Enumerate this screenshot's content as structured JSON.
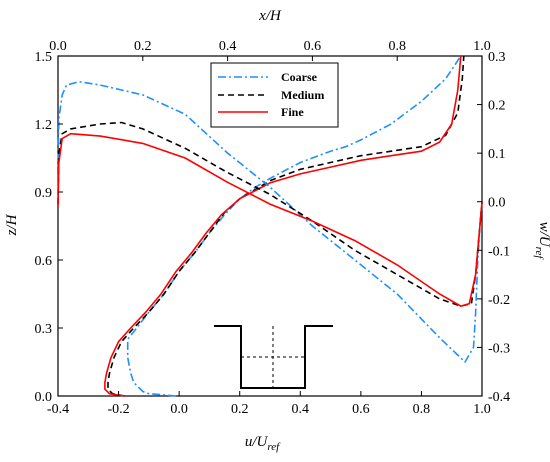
{
  "chart_data": {
    "type": "line",
    "axes": {
      "bottom": {
        "label_main": "u/U",
        "label_sub": "ref",
        "range": [
          -0.4,
          1.0
        ],
        "ticks": [
          "-0.4",
          "-0.2",
          "0.0",
          "0.2",
          "0.4",
          "0.6",
          "0.8",
          "1.0"
        ],
        "tick_values": [
          -0.4,
          -0.2,
          0.0,
          0.2,
          0.4,
          0.6,
          0.8,
          1.0
        ]
      },
      "top": {
        "label": "x/H",
        "range": [
          0.0,
          1.0
        ],
        "ticks": [
          "0.0",
          "0.2",
          "0.4",
          "0.6",
          "0.8",
          "1.0"
        ],
        "tick_values": [
          0.0,
          0.2,
          0.4,
          0.6,
          0.8,
          1.0
        ]
      },
      "left": {
        "label": "z/H",
        "range": [
          0.0,
          1.5
        ],
        "ticks": [
          "0.0",
          "0.3",
          "0.6",
          "0.9",
          "1.2",
          "1.5"
        ],
        "tick_values": [
          0.0,
          0.3,
          0.6,
          0.9,
          1.2,
          1.5
        ]
      },
      "right": {
        "label_main": "w/U",
        "label_sub": "ref",
        "range": [
          -0.4,
          0.3
        ],
        "ticks": [
          "-0.4",
          "-0.3",
          "-0.2",
          "-0.1",
          "0.0",
          "0.1",
          "0.2",
          "0.3"
        ],
        "tick_values": [
          -0.4,
          -0.3,
          -0.2,
          -0.1,
          0.0,
          0.1,
          0.2,
          0.3
        ]
      }
    },
    "legend": {
      "placement": "top-center",
      "entries": [
        {
          "name": "Coarse",
          "color": "#1f8fff",
          "dash": "dashdot"
        },
        {
          "name": "Medium",
          "color": "#000000",
          "dash": "dash"
        },
        {
          "name": "Fine",
          "color": "#ff0000",
          "dash": "solid"
        }
      ]
    },
    "series_u": [
      {
        "name": "Coarse",
        "color": "#1f8fff",
        "dash": "dashdot",
        "points": [
          [
            -0.01,
            0.0
          ],
          [
            -0.05,
            0.005
          ],
          [
            -0.1,
            0.01
          ],
          [
            -0.12,
            0.02
          ],
          [
            -0.15,
            0.06
          ],
          [
            -0.16,
            0.1
          ],
          [
            -0.17,
            0.17
          ],
          [
            -0.17,
            0.25
          ],
          [
            -0.14,
            0.3
          ],
          [
            -0.1,
            0.37
          ],
          [
            -0.05,
            0.45
          ],
          [
            0.0,
            0.55
          ],
          [
            0.05,
            0.63
          ],
          [
            0.1,
            0.72
          ],
          [
            0.15,
            0.8
          ],
          [
            0.2,
            0.87
          ],
          [
            0.25,
            0.92
          ],
          [
            0.3,
            0.96
          ],
          [
            0.4,
            1.03
          ],
          [
            0.5,
            1.08
          ],
          [
            0.55,
            1.1
          ],
          [
            0.6,
            1.13
          ],
          [
            0.7,
            1.2
          ],
          [
            0.8,
            1.3
          ],
          [
            0.88,
            1.4
          ],
          [
            0.93,
            1.5
          ]
        ]
      },
      {
        "name": "Medium",
        "color": "#000000",
        "dash": "dash",
        "points": [
          [
            -0.18,
            0.0
          ],
          [
            -0.22,
            0.01
          ],
          [
            -0.235,
            0.03
          ],
          [
            -0.235,
            0.06
          ],
          [
            -0.23,
            0.1
          ],
          [
            -0.215,
            0.17
          ],
          [
            -0.19,
            0.24
          ],
          [
            -0.15,
            0.3
          ],
          [
            -0.1,
            0.37
          ],
          [
            -0.05,
            0.45
          ],
          [
            0.0,
            0.55
          ],
          [
            0.05,
            0.63
          ],
          [
            0.1,
            0.72
          ],
          [
            0.15,
            0.81
          ],
          [
            0.2,
            0.87
          ],
          [
            0.3,
            0.95
          ],
          [
            0.4,
            1.0
          ],
          [
            0.5,
            1.03
          ],
          [
            0.6,
            1.06
          ],
          [
            0.7,
            1.08
          ],
          [
            0.8,
            1.1
          ],
          [
            0.88,
            1.15
          ],
          [
            0.92,
            1.25
          ],
          [
            0.935,
            1.4
          ],
          [
            0.94,
            1.5
          ]
        ]
      },
      {
        "name": "Fine",
        "color": "#ff0000",
        "dash": "solid",
        "points": [
          [
            -0.18,
            0.0
          ],
          [
            -0.23,
            0.01
          ],
          [
            -0.245,
            0.03
          ],
          [
            -0.245,
            0.06
          ],
          [
            -0.24,
            0.1
          ],
          [
            -0.225,
            0.17
          ],
          [
            -0.2,
            0.24
          ],
          [
            -0.16,
            0.3
          ],
          [
            -0.11,
            0.37
          ],
          [
            -0.06,
            0.45
          ],
          [
            -0.01,
            0.55
          ],
          [
            0.04,
            0.63
          ],
          [
            0.09,
            0.72
          ],
          [
            0.14,
            0.8
          ],
          [
            0.2,
            0.87
          ],
          [
            0.3,
            0.94
          ],
          [
            0.4,
            0.98
          ],
          [
            0.5,
            1.01
          ],
          [
            0.6,
            1.04
          ],
          [
            0.7,
            1.06
          ],
          [
            0.8,
            1.08
          ],
          [
            0.86,
            1.12
          ],
          [
            0.9,
            1.2
          ],
          [
            0.92,
            1.35
          ],
          [
            0.93,
            1.5
          ]
        ]
      }
    ],
    "series_w": [
      {
        "name": "Coarse",
        "color": "#1f8fff",
        "dash": "dashdot",
        "points": [
          [
            0.0,
            0.05
          ],
          [
            0.002,
            0.17
          ],
          [
            0.01,
            0.22
          ],
          [
            0.02,
            0.24
          ],
          [
            0.05,
            0.247
          ],
          [
            0.1,
            0.24
          ],
          [
            0.2,
            0.22
          ],
          [
            0.3,
            0.18
          ],
          [
            0.4,
            0.1
          ],
          [
            0.5,
            0.03
          ],
          [
            0.6,
            -0.05
          ],
          [
            0.7,
            -0.12
          ],
          [
            0.8,
            -0.19
          ],
          [
            0.9,
            -0.28
          ],
          [
            0.96,
            -0.33
          ],
          [
            0.98,
            -0.3
          ],
          [
            0.985,
            -0.23
          ],
          [
            0.99,
            -0.12
          ],
          [
            0.995,
            -0.05
          ],
          [
            1.0,
            0.0
          ]
        ]
      },
      {
        "name": "Medium",
        "color": "#000000",
        "dash": "dash",
        "points": [
          [
            0.0,
            -0.005
          ],
          [
            0.002,
            0.1
          ],
          [
            0.01,
            0.14
          ],
          [
            0.03,
            0.15
          ],
          [
            0.1,
            0.16
          ],
          [
            0.15,
            0.163
          ],
          [
            0.2,
            0.15
          ],
          [
            0.3,
            0.11
          ],
          [
            0.4,
            0.06
          ],
          [
            0.5,
            0.015
          ],
          [
            0.6,
            -0.04
          ],
          [
            0.7,
            -0.1
          ],
          [
            0.8,
            -0.15
          ],
          [
            0.9,
            -0.2
          ],
          [
            0.95,
            -0.215
          ],
          [
            0.975,
            -0.21
          ],
          [
            0.985,
            -0.15
          ],
          [
            0.995,
            -0.05
          ],
          [
            1.0,
            0.0
          ]
        ]
      },
      {
        "name": "Fine",
        "color": "#ff0000",
        "dash": "solid",
        "points": [
          [
            0.0,
            -0.01
          ],
          [
            0.002,
            0.08
          ],
          [
            0.01,
            0.13
          ],
          [
            0.03,
            0.14
          ],
          [
            0.1,
            0.135
          ],
          [
            0.2,
            0.12
          ],
          [
            0.3,
            0.09
          ],
          [
            0.4,
            0.04
          ],
          [
            0.5,
            -0.005
          ],
          [
            0.6,
            -0.04
          ],
          [
            0.7,
            -0.08
          ],
          [
            0.8,
            -0.13
          ],
          [
            0.9,
            -0.19
          ],
          [
            0.95,
            -0.215
          ],
          [
            0.97,
            -0.21
          ],
          [
            0.985,
            -0.15
          ],
          [
            0.995,
            -0.05
          ],
          [
            1.0,
            0.0
          ]
        ]
      }
    ],
    "inset": {
      "description_icon": "cavity-schematic-icon"
    },
    "grid": false
  }
}
